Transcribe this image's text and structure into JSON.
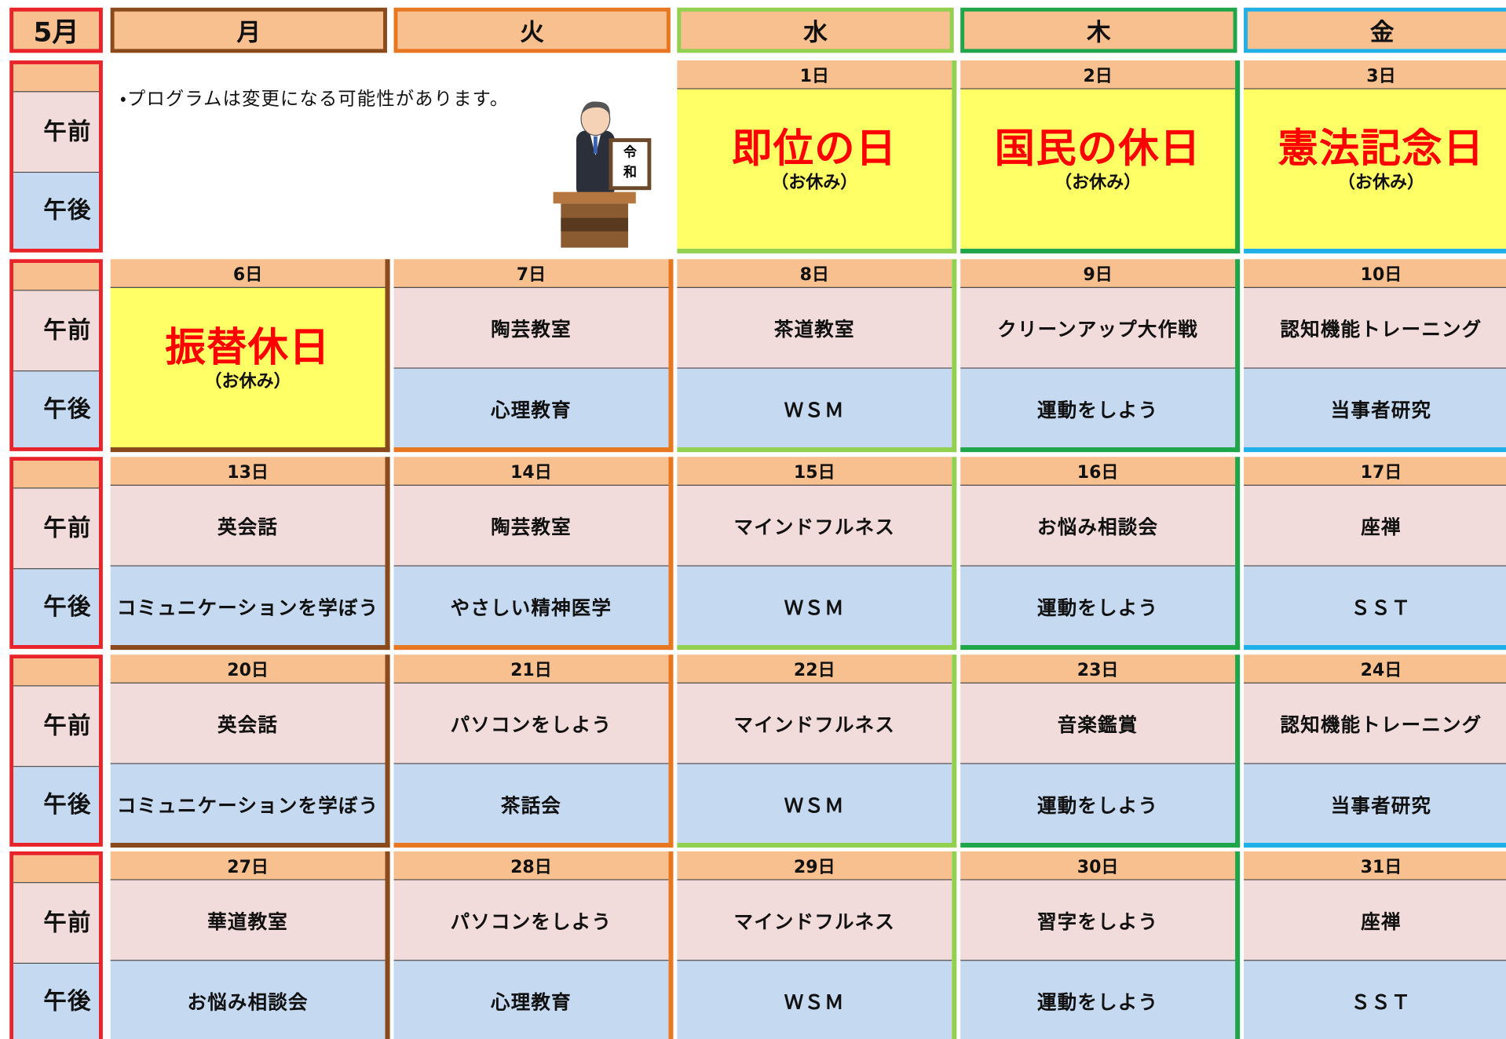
{
  "month": "5月",
  "weekdays": [
    {
      "name": "月",
      "color": "#8b4a1c"
    },
    {
      "name": "火",
      "color": "#e87722"
    },
    {
      "name": "水",
      "color": "#92d050"
    },
    {
      "name": "木",
      "color": "#1fa64a"
    },
    {
      "name": "金",
      "color": "#1fb0e8"
    }
  ],
  "period_labels": {
    "am": "午前",
    "pm": "午後"
  },
  "note": "・プログラムは変更になる可能性があります。",
  "illustration_text": "令和",
  "weeks": [
    {
      "days": [
        null,
        null,
        {
          "date": "1日",
          "holiday": "即位の日",
          "holiday_note": "（お休み）"
        },
        {
          "date": "2日",
          "holiday": "国民の休日",
          "holiday_note": "（お休み）"
        },
        {
          "date": "3日",
          "holiday": "憲法記念日",
          "holiday_note": "（お休み）"
        }
      ]
    },
    {
      "days": [
        {
          "date": "6日",
          "holiday": "振替休日",
          "holiday_note": "（お休み）"
        },
        {
          "date": "7日",
          "am": "陶芸教室",
          "pm": "心理教育"
        },
        {
          "date": "8日",
          "am": "茶道教室",
          "pm": "ＷＳＭ"
        },
        {
          "date": "9日",
          "am": "クリーンアップ大作戦",
          "pm": "運動をしよう"
        },
        {
          "date": "10日",
          "am": "認知機能トレーニング",
          "pm": "当事者研究"
        }
      ]
    },
    {
      "days": [
        {
          "date": "13日",
          "am": "英会話",
          "pm": "コミュニケーションを学ぼう"
        },
        {
          "date": "14日",
          "am": "陶芸教室",
          "pm": "やさしい精神医学"
        },
        {
          "date": "15日",
          "am": "マインドフルネス",
          "pm": "ＷＳＭ"
        },
        {
          "date": "16日",
          "am": "お悩み相談会",
          "pm": "運動をしよう"
        },
        {
          "date": "17日",
          "am": "座禅",
          "pm": "ＳＳＴ"
        }
      ]
    },
    {
      "days": [
        {
          "date": "20日",
          "am": "英会話",
          "pm": "コミュニケーションを学ぼう"
        },
        {
          "date": "21日",
          "am": "パソコンをしよう",
          "pm": "茶話会"
        },
        {
          "date": "22日",
          "am": "マインドフルネス",
          "pm": "ＷＳＭ"
        },
        {
          "date": "23日",
          "am": "音楽鑑賞",
          "pm": "運動をしよう"
        },
        {
          "date": "24日",
          "am": "認知機能トレーニング",
          "pm": "当事者研究"
        }
      ]
    },
    {
      "days": [
        {
          "date": "27日",
          "am": "華道教室",
          "pm": "お悩み相談会"
        },
        {
          "date": "28日",
          "am": "パソコンをしよう",
          "pm": "心理教育"
        },
        {
          "date": "29日",
          "am": "マインドフルネス",
          "pm": "ＷＳＭ"
        },
        {
          "date": "30日",
          "am": "習字をしよう",
          "pm": "運動をしよう"
        },
        {
          "date": "31日",
          "am": "座禅",
          "pm": "ＳＳＴ"
        }
      ]
    }
  ]
}
